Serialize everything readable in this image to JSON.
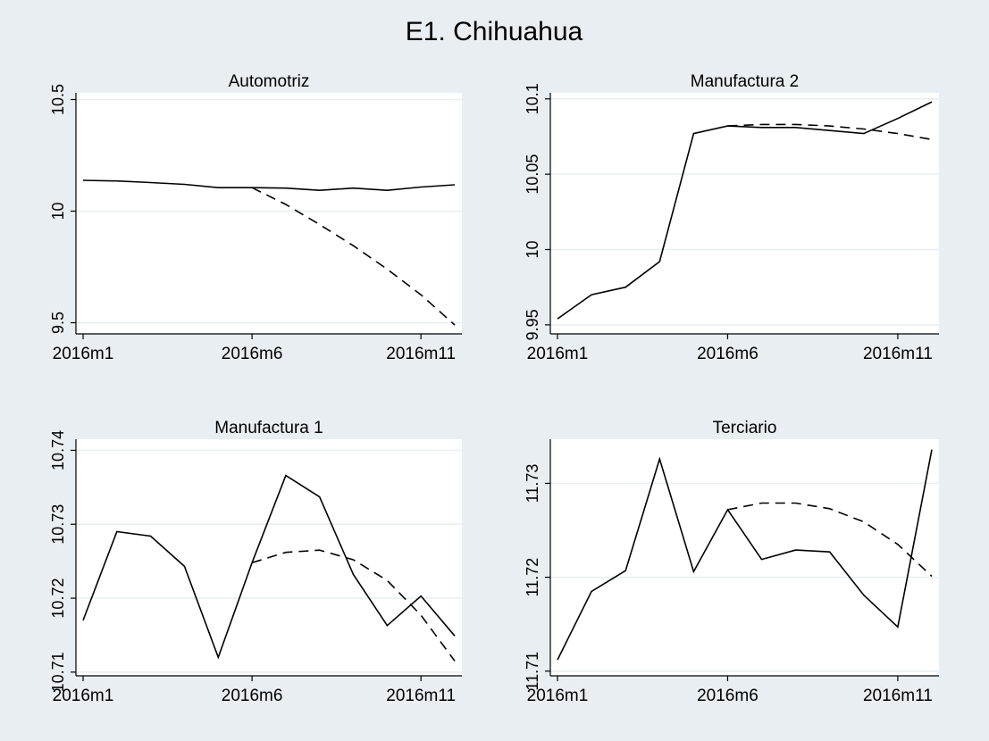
{
  "title": "E1. Chihuahua",
  "colors": {
    "background": "#e8eef1",
    "plot_background": "#ffffff",
    "line": "#000000"
  },
  "chart_data": [
    {
      "type": "line",
      "title": "Automotriz",
      "xlabel": "",
      "ylabel": "",
      "x": [
        1,
        2,
        3,
        4,
        5,
        6,
        7,
        8,
        9,
        10,
        11,
        12
      ],
      "xticks": [
        {
          "value": 1,
          "label": "2016m1"
        },
        {
          "value": 6,
          "label": "2016m6"
        },
        {
          "value": 11,
          "label": "2016m11"
        }
      ],
      "yticks": [
        {
          "value": 9.5,
          "label": "9.5"
        },
        {
          "value": 10,
          "label": "10"
        },
        {
          "value": 10.5,
          "label": "10.5"
        }
      ],
      "xlim": [
        1,
        12
      ],
      "ylim": [
        9.45,
        10.53
      ],
      "grid": true,
      "series": [
        {
          "style": "solid",
          "x": [
            1,
            2,
            3,
            4,
            5,
            6,
            7,
            8,
            9,
            10,
            11,
            12
          ],
          "values": [
            10.138,
            10.135,
            10.128,
            10.12,
            10.105,
            10.105,
            10.103,
            10.093,
            10.103,
            10.093,
            10.108,
            10.118
          ]
        },
        {
          "style": "dashed",
          "x": [
            6,
            7,
            8,
            9,
            10,
            11,
            12
          ],
          "values": [
            10.105,
            10.03,
            9.94,
            9.845,
            9.74,
            9.625,
            9.49
          ]
        }
      ]
    },
    {
      "type": "line",
      "title": "Manufactura 2",
      "xlabel": "",
      "ylabel": "",
      "x": [
        1,
        2,
        3,
        4,
        5,
        6,
        7,
        8,
        9,
        10,
        11,
        12
      ],
      "xticks": [
        {
          "value": 1,
          "label": "2016m1"
        },
        {
          "value": 6,
          "label": "2016m6"
        },
        {
          "value": 11,
          "label": "2016m11"
        }
      ],
      "yticks": [
        {
          "value": 9.95,
          "label": "9.95"
        },
        {
          "value": 10,
          "label": "10"
        },
        {
          "value": 10.05,
          "label": "10.05"
        },
        {
          "value": 10.1,
          "label": "10.1"
        }
      ],
      "xlim": [
        1,
        12
      ],
      "ylim": [
        9.944,
        10.104
      ],
      "grid": true,
      "series": [
        {
          "style": "solid",
          "x": [
            1,
            2,
            3,
            4,
            5,
            6,
            7,
            8,
            9,
            10,
            11,
            12
          ],
          "values": [
            9.954,
            9.97,
            9.975,
            9.992,
            10.077,
            10.082,
            10.081,
            10.081,
            10.079,
            10.077,
            10.087,
            10.098
          ]
        },
        {
          "style": "dashed",
          "x": [
            6,
            7,
            8,
            9,
            10,
            11,
            12
          ],
          "values": [
            10.082,
            10.083,
            10.083,
            10.082,
            10.08,
            10.077,
            10.073
          ]
        }
      ]
    },
    {
      "type": "line",
      "title": "Manufactura 1",
      "xlabel": "",
      "ylabel": "",
      "x": [
        1,
        2,
        3,
        4,
        5,
        6,
        7,
        8,
        9,
        10,
        11,
        12
      ],
      "xticks": [
        {
          "value": 1,
          "label": "2016m1"
        },
        {
          "value": 6,
          "label": "2016m6"
        },
        {
          "value": 11,
          "label": "2016m11"
        }
      ],
      "yticks": [
        {
          "value": 10.71,
          "label": "10.71"
        },
        {
          "value": 10.72,
          "label": "10.72"
        },
        {
          "value": 10.73,
          "label": "10.73"
        },
        {
          "value": 10.74,
          "label": "10.74"
        }
      ],
      "xlim": [
        1,
        12
      ],
      "ylim": [
        10.7095,
        10.7415
      ],
      "grid": true,
      "series": [
        {
          "style": "solid",
          "x": [
            1,
            2,
            3,
            4,
            5,
            6,
            7,
            8,
            9,
            10,
            11,
            12
          ],
          "values": [
            10.717,
            10.729,
            10.7284,
            10.7243,
            10.712,
            10.7248,
            10.7366,
            10.7337,
            10.7232,
            10.7163,
            10.7203,
            10.7149
          ]
        },
        {
          "style": "dashed",
          "x": [
            6,
            7,
            8,
            9,
            10,
            11,
            12
          ],
          "values": [
            10.7248,
            10.7262,
            10.7265,
            10.7252,
            10.7224,
            10.7177,
            10.7115
          ]
        }
      ]
    },
    {
      "type": "line",
      "title": "Terciario",
      "xlabel": "",
      "ylabel": "",
      "x": [
        1,
        2,
        3,
        4,
        5,
        6,
        7,
        8,
        9,
        10,
        11,
        12
      ],
      "xticks": [
        {
          "value": 1,
          "label": "2016m1"
        },
        {
          "value": 6,
          "label": "2016m6"
        },
        {
          "value": 11,
          "label": "2016m11"
        }
      ],
      "yticks": [
        {
          "value": 11.71,
          "label": "11.71"
        },
        {
          "value": 11.72,
          "label": "11.72"
        },
        {
          "value": 11.73,
          "label": "11.73"
        }
      ],
      "xlim": [
        1,
        12
      ],
      "ylim": [
        11.7095,
        11.7347
      ],
      "grid": true,
      "series": [
        {
          "style": "solid",
          "x": [
            1,
            2,
            3,
            4,
            5,
            6,
            7,
            8,
            9,
            10,
            11,
            12
          ],
          "values": [
            11.7112,
            11.7185,
            11.7207,
            11.7326,
            11.7206,
            11.7272,
            11.7219,
            11.7229,
            11.7227,
            11.7181,
            11.7147,
            11.7336
          ]
        },
        {
          "style": "dashed",
          "x": [
            6,
            7,
            8,
            9,
            10,
            11,
            12
          ],
          "values": [
            11.7272,
            11.7279,
            11.7279,
            11.7273,
            11.7259,
            11.7235,
            11.7201
          ]
        }
      ]
    }
  ]
}
